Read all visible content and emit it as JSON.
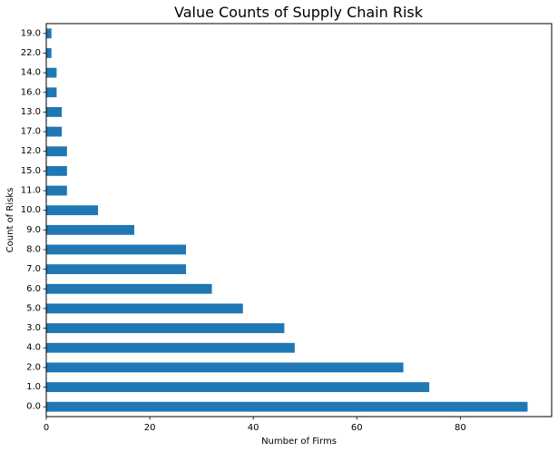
{
  "chart_data": {
    "type": "bar",
    "orientation": "horizontal",
    "title": "Value Counts of Supply Chain Risk",
    "xlabel": "Number of Firms",
    "ylabel": "Count of Risks",
    "categories": [
      "0.0",
      "1.0",
      "2.0",
      "4.0",
      "3.0",
      "5.0",
      "6.0",
      "7.0",
      "8.0",
      "9.0",
      "10.0",
      "11.0",
      "15.0",
      "12.0",
      "17.0",
      "13.0",
      "16.0",
      "14.0",
      "22.0",
      "19.0"
    ],
    "values": [
      93,
      74,
      69,
      48,
      46,
      38,
      32,
      27,
      27,
      17,
      10,
      4,
      4,
      4,
      3,
      3,
      2,
      2,
      1,
      1
    ],
    "xlim": [
      0,
      97.65
    ],
    "xticks": [
      0,
      20,
      40,
      60,
      80
    ],
    "grid": false,
    "legend": false,
    "bar_color": "#1f77b4"
  }
}
